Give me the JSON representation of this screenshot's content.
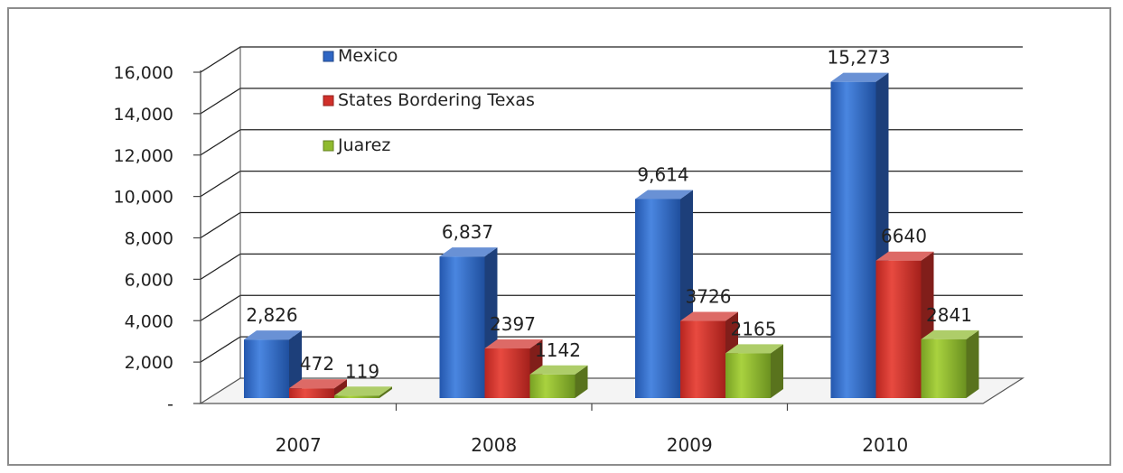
{
  "chart_data": {
    "type": "bar",
    "categories": [
      "2007",
      "2008",
      "2009",
      "2010"
    ],
    "series": [
      {
        "name": "Mexico",
        "values": [
          2826,
          6837,
          9614,
          15273
        ],
        "labels": [
          "2,826",
          "6,837",
          "9,614",
          "15,273"
        ]
      },
      {
        "name": "States Bordering Texas",
        "values": [
          472,
          2397,
          3726,
          6640
        ],
        "labels": [
          "472",
          "2397",
          "3726",
          "6640"
        ]
      },
      {
        "name": "Juarez",
        "values": [
          119,
          1142,
          2165,
          2841
        ],
        "labels": [
          "119",
          "1142",
          "2165",
          "2841"
        ]
      }
    ],
    "y_ticks": [
      "-",
      "2,000",
      "4,000",
      "6,000",
      "8,000",
      "10,000",
      "12,000",
      "14,000",
      "16,000"
    ],
    "ylim": [
      0,
      16000
    ],
    "three_d": true,
    "grid": true,
    "legend_position": "top-left"
  },
  "colors": {
    "mexico": "#2f66c4",
    "states": "#d0302a",
    "juarez": "#8fba2e"
  }
}
